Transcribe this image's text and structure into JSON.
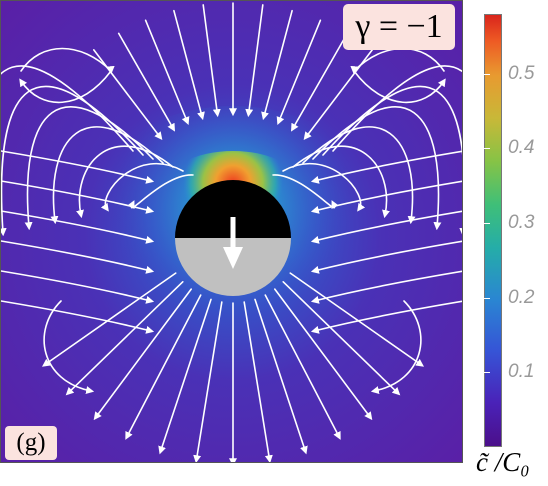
{
  "panel_label": "(g)",
  "gamma_label": "γ = −1",
  "colorbar": {
    "label": "c̃ /C₀",
    "ticks": [
      "0.1",
      "0.2",
      "0.3",
      "0.4",
      "0.5"
    ],
    "tick_values": [
      0.1,
      0.2,
      0.3,
      0.4,
      0.5
    ],
    "range": [
      0.0,
      0.58
    ],
    "colormap": "rainbow (purple → blue → cyan → green → yellow → orange → red)"
  },
  "particle": {
    "top_half_color": "#000000",
    "bottom_half_color": "#c0c0c0",
    "arrow_direction": "down",
    "arrow_color": "#ffffff"
  },
  "colors": {
    "background_low": "#5a1fa6",
    "near_particle_mid": "#2a90d0",
    "hot_spot": "#ee3a20",
    "streamline": "#ffffff"
  },
  "chart_data": {
    "type": "heatmap",
    "title": "",
    "xlabel": "",
    "ylabel": "",
    "colorbar_label": "c̃ /C₀",
    "colorbar_ticks": [
      0.1,
      0.2,
      0.3,
      0.4,
      0.5
    ],
    "colorbar_range": [
      0.0,
      0.58
    ],
    "annotations": [
      "(g)",
      "γ = −1"
    ],
    "overlay": "white streamlines with arrowheads (flow field)"
  }
}
